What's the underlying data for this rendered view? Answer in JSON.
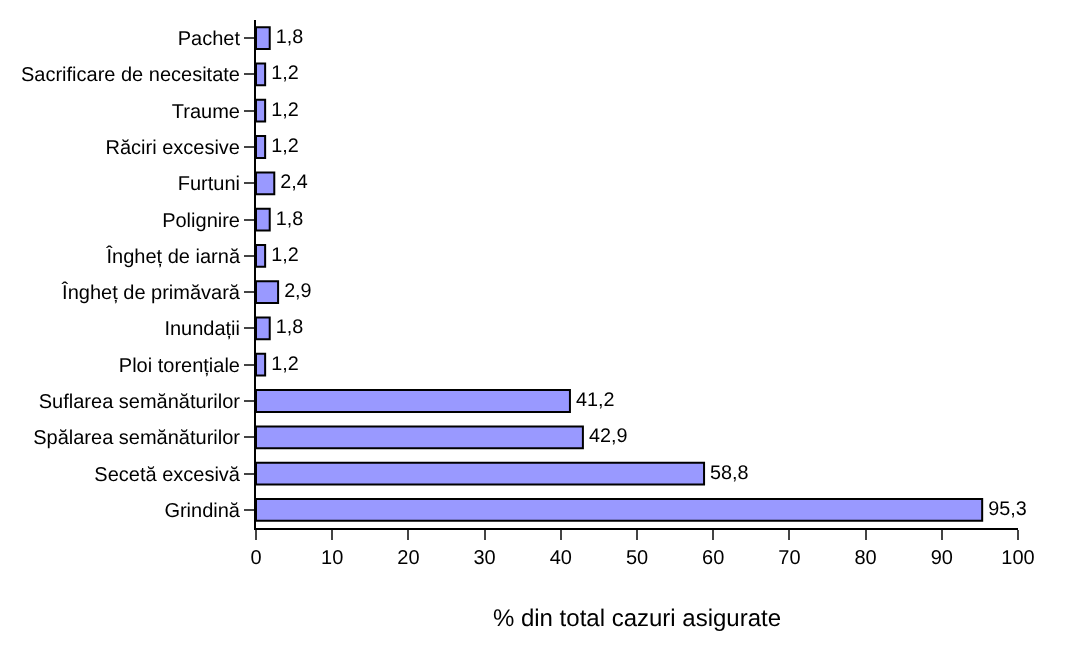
{
  "chart_data": {
    "type": "bar",
    "orientation": "horizontal",
    "xlabel": "% din total cazuri asigurate",
    "categories": [
      "Pachet",
      "Sacrificare de necesitate",
      "Traume",
      "Răciri excesive",
      "Furtuni",
      "Polignire",
      "Îngheț de iarnă",
      "Îngheț de primăvară",
      "Inundații",
      "Ploi torențiale",
      "Suflarea semănăturilor",
      "Spălarea semănăturilor",
      "Secetă excesivă",
      "Grindină"
    ],
    "values": [
      1.8,
      1.2,
      1.2,
      1.2,
      2.4,
      1.8,
      1.2,
      2.9,
      1.8,
      1.2,
      41.2,
      42.9,
      58.8,
      95.3
    ],
    "value_labels": [
      "1,8",
      "1,2",
      "1,2",
      "1,2",
      "2,4",
      "1,8",
      "1,2",
      "2,9",
      "1,8",
      "1,2",
      "41,2",
      "42,9",
      "58,8",
      "95,3"
    ],
    "color": "#9999ff",
    "xlim": [
      0,
      100
    ],
    "xticks": [
      0,
      10,
      20,
      30,
      40,
      50,
      60,
      70,
      80,
      90,
      100
    ]
  }
}
